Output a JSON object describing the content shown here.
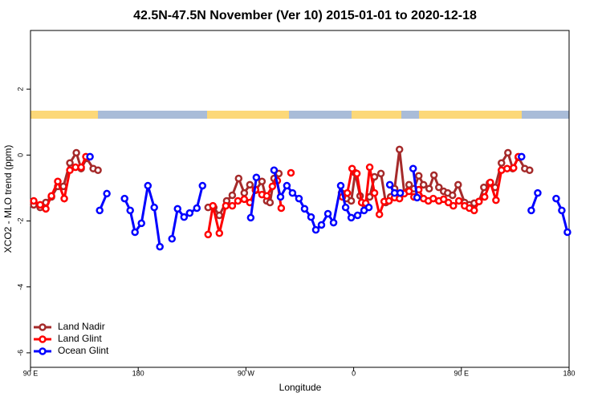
{
  "chart_data": {
    "type": "line",
    "title": "42.5N-47.5N November (Ver 10)   2015-01-01 to 2020-12-18",
    "x_label": "Longitude",
    "y_label": "XCO2 - MLO trend (ppm)",
    "xlim": [
      90,
      540
    ],
    "xticks": [
      {
        "value": 90,
        "label": "90 E"
      },
      {
        "value": 180,
        "label": "180"
      },
      {
        "value": 270,
        "label": "90 W"
      },
      {
        "value": 360,
        "label": "0"
      },
      {
        "value": 450,
        "label": "90 E"
      },
      {
        "value": 540,
        "label": "180"
      }
    ],
    "ylim": [
      -6.44,
      3.78
    ],
    "yticks": [
      2,
      0,
      -2,
      -4,
      -6
    ],
    "legend": "bottom-left",
    "series": [
      {
        "name": "Land Nadir",
        "color": "#a52a2a",
        "x": [
          92.7,
          98.1,
          102.8,
          107.5,
          112.8,
          117.5,
          122.9,
          128.3,
          132.3,
          137.0,
          142.4,
          146.4,
          null,
          238.4,
          243.1,
          247.8,
          253.9,
          258.6,
          263.9,
          268.6,
          273.3,
          278.0,
          283.4,
          287.4,
          290.1,
          293.5,
          297.5,
          null,
          349.9,
          354.0,
          358.0,
          361.3,
          365.4,
          369.4,
          373.4,
          377.4,
          382.8,
          386.8,
          390.9,
          394.2,
          398.3,
          402.3,
          406.3,
          410.4,
          414.4,
          418.4,
          423.1,
          427.1,
          431.2,
          435.2,
          438.6,
          442.6,
          447.3,
          452.7,
          456.7,
          460.7,
          464.7,
          468.8,
          473.5,
          478.2,
          483.5,
          488.9,
          492.9,
          497.6,
          503.0,
          507.0
        ],
        "values": [
          -1.51,
          -1.59,
          -1.44,
          -1.27,
          -0.95,
          -0.95,
          -0.24,
          0.07,
          -0.41,
          -0.1,
          -0.41,
          -0.46,
          null,
          -1.59,
          -1.59,
          -1.83,
          -1.39,
          -1.22,
          -0.71,
          -1.15,
          -0.9,
          -1.07,
          -0.8,
          -1.39,
          -1.44,
          -0.71,
          -0.56,
          null,
          -1.15,
          -1.32,
          -1.39,
          -0.54,
          -1.24,
          -1.51,
          -1.27,
          -0.66,
          -0.56,
          -1.44,
          -1.27,
          -1.02,
          0.17,
          -1.15,
          -0.9,
          -1.02,
          -0.63,
          -0.9,
          -1.02,
          -0.61,
          -0.98,
          -1.1,
          -1.15,
          -1.22,
          -0.9,
          -1.44,
          -1.51,
          -1.46,
          -1.41,
          -0.98,
          -0.85,
          -0.98,
          -0.24,
          0.07,
          -0.41,
          -0.07,
          -0.41,
          -0.46
        ]
      },
      {
        "name": "Land Glint",
        "color": "#ff0000",
        "x": [
          92.7,
          98.1,
          102.8,
          107.5,
          112.8,
          118.2,
          122.9,
          127.6,
          132.3,
          136.3,
          null,
          238.4,
          242.4,
          247.8,
          253.2,
          258.6,
          263.3,
          268.6,
          273.3,
          278.0,
          283.4,
          287.4,
          292.1,
          296.2,
          299.5,
          null,
          307.6,
          null,
          350.6,
          354.7,
          358.7,
          362.7,
          366.7,
          370.1,
          373.4,
          377.4,
          381.5,
          385.5,
          389.5,
          394.2,
          398.3,
          402.3,
          406.3,
          410.4,
          414.4,
          418.4,
          422.4,
          426.5,
          431.2,
          435.2,
          439.2,
          443.3,
          447.9,
          452.7,
          456.7,
          460.7,
          464.7,
          469.4,
          474.2,
          478.9,
          483.5,
          488.2,
          493.6,
          497.6
        ],
        "values": [
          -1.39,
          -1.51,
          -1.63,
          -1.24,
          -0.8,
          -1.32,
          -0.46,
          -0.37,
          -0.37,
          -0.05,
          null,
          -2.41,
          -1.54,
          -2.37,
          -1.54,
          -1.54,
          -1.39,
          -1.34,
          -1.44,
          -1.05,
          -1.2,
          -1.24,
          -0.95,
          -0.78,
          -1.61,
          null,
          -0.54,
          null,
          -1.27,
          -1.15,
          -0.41,
          -0.56,
          -1.44,
          -1.46,
          -0.37,
          -1.15,
          -1.8,
          -1.41,
          -1.39,
          -1.29,
          -1.32,
          -1.17,
          -1.1,
          -1.27,
          -1.05,
          -1.32,
          -1.39,
          -1.32,
          -1.39,
          -1.34,
          -1.44,
          -1.54,
          -1.39,
          -1.54,
          -1.61,
          -1.68,
          -1.41,
          -1.27,
          -0.83,
          -1.37,
          -0.46,
          -0.41,
          -0.39,
          -0.05
        ]
      },
      {
        "name": "Ocean Glint",
        "color": "#0000ff",
        "x": [
          139.7,
          null,
          147.8,
          153.8,
          null,
          168.6,
          173.3,
          177.3,
          182.7,
          188.1,
          193.4,
          198.1,
          null,
          208.2,
          212.9,
          218.3,
          223.0,
          229.0,
          233.7,
          null,
          274.0,
          278.7,
          null,
          293.5,
          298.9,
          304.2,
          308.9,
          314.3,
          319.0,
          324.4,
          328.4,
          333.1,
          338.5,
          343.2,
          349.2,
          353.3,
          358.0,
          363.3,
          368.7,
          372.7,
          null,
          390.2,
          394.2,
          398.9,
          null,
          409.7,
          413.0,
          null,
          500.3,
          null,
          508.4,
          513.8,
          null,
          529.2,
          533.9,
          538.6
        ],
        "values": [
          -0.05,
          null,
          -1.68,
          -1.17,
          null,
          -1.32,
          -1.68,
          -2.34,
          -2.07,
          -0.93,
          -1.59,
          -2.78,
          null,
          -2.54,
          -1.63,
          -1.88,
          -1.76,
          -1.61,
          -0.93,
          null,
          -1.9,
          -0.68,
          null,
          -0.46,
          -1.27,
          -0.93,
          -1.15,
          -1.32,
          -1.63,
          -1.88,
          -2.27,
          -2.12,
          -1.78,
          -2.05,
          -0.93,
          -1.59,
          -1.9,
          -1.83,
          -1.68,
          -1.59,
          null,
          -0.9,
          -1.15,
          -1.15,
          null,
          -0.41,
          -1.29,
          null,
          -0.05,
          null,
          -1.68,
          -1.15,
          null,
          -1.32,
          -1.68,
          -2.34
        ]
      }
    ]
  }
}
